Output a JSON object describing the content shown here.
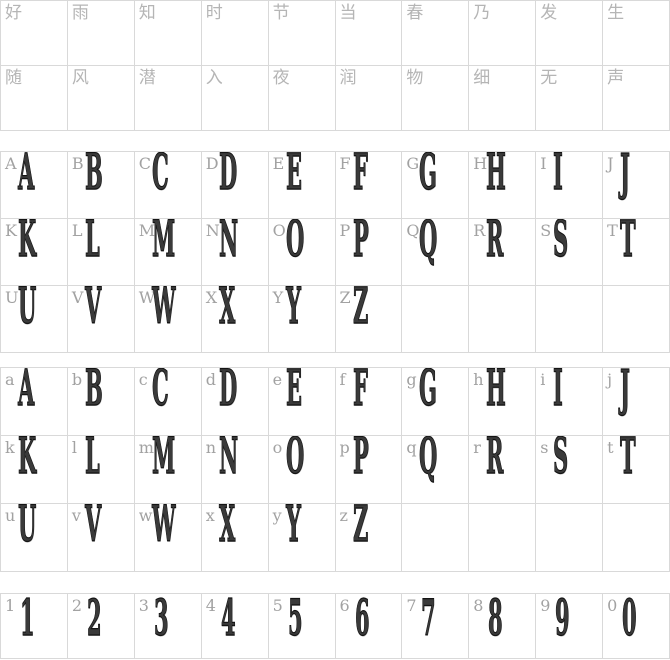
{
  "page": {
    "background": "#ffffff",
    "grid_border_color": "#d9d9d9",
    "label_color": "#a2a2a2",
    "hanzi_label_color": "#b5b5b5",
    "glyph_color": "#1c1c1c"
  },
  "tables": [
    {
      "title": "hanzi-sample-preview",
      "rows": [
        [
          {
            "label": "好",
            "glyph": ""
          },
          {
            "label": "雨",
            "glyph": ""
          },
          {
            "label": "知",
            "glyph": ""
          },
          {
            "label": "时",
            "glyph": ""
          },
          {
            "label": "节",
            "glyph": ""
          },
          {
            "label": "当",
            "glyph": ""
          },
          {
            "label": "春",
            "glyph": ""
          },
          {
            "label": "乃",
            "glyph": ""
          },
          {
            "label": "发",
            "glyph": ""
          },
          {
            "label": "生",
            "glyph": ""
          }
        ],
        [
          {
            "label": "随",
            "glyph": ""
          },
          {
            "label": "风",
            "glyph": ""
          },
          {
            "label": "潜",
            "glyph": ""
          },
          {
            "label": "入",
            "glyph": ""
          },
          {
            "label": "夜",
            "glyph": ""
          },
          {
            "label": "润",
            "glyph": ""
          },
          {
            "label": "物",
            "glyph": ""
          },
          {
            "label": "细",
            "glyph": ""
          },
          {
            "label": "无",
            "glyph": ""
          },
          {
            "label": "声",
            "glyph": ""
          }
        ]
      ]
    },
    {
      "title": "uppercase-preview",
      "rows": [
        [
          {
            "label": "A",
            "glyph": "A"
          },
          {
            "label": "B",
            "glyph": "B"
          },
          {
            "label": "C",
            "glyph": "C"
          },
          {
            "label": "D",
            "glyph": "D"
          },
          {
            "label": "E",
            "glyph": "E"
          },
          {
            "label": "F",
            "glyph": "F"
          },
          {
            "label": "G",
            "glyph": "G"
          },
          {
            "label": "H",
            "glyph": "H"
          },
          {
            "label": "I",
            "glyph": "I"
          },
          {
            "label": "J",
            "glyph": "J"
          }
        ],
        [
          {
            "label": "K",
            "glyph": "K"
          },
          {
            "label": "L",
            "glyph": "L"
          },
          {
            "label": "M",
            "glyph": "M"
          },
          {
            "label": "N",
            "glyph": "N"
          },
          {
            "label": "O",
            "glyph": "O"
          },
          {
            "label": "P",
            "glyph": "P"
          },
          {
            "label": "Q",
            "glyph": "Q"
          },
          {
            "label": "R",
            "glyph": "R"
          },
          {
            "label": "S",
            "glyph": "S"
          },
          {
            "label": "T",
            "glyph": "T"
          }
        ],
        [
          {
            "label": "U",
            "glyph": "U"
          },
          {
            "label": "V",
            "glyph": "V"
          },
          {
            "label": "W",
            "glyph": "W"
          },
          {
            "label": "X",
            "glyph": "X"
          },
          {
            "label": "Y",
            "glyph": "Y"
          },
          {
            "label": "Z",
            "glyph": "Z"
          },
          {
            "label": "",
            "glyph": ""
          },
          {
            "label": "",
            "glyph": ""
          },
          {
            "label": "",
            "glyph": ""
          },
          {
            "label": "",
            "glyph": ""
          }
        ]
      ]
    },
    {
      "title": "lowercase-preview",
      "rows": [
        [
          {
            "label": "a",
            "glyph": "A"
          },
          {
            "label": "b",
            "glyph": "B"
          },
          {
            "label": "c",
            "glyph": "C"
          },
          {
            "label": "d",
            "glyph": "D"
          },
          {
            "label": "e",
            "glyph": "E"
          },
          {
            "label": "f",
            "glyph": "F"
          },
          {
            "label": "g",
            "glyph": "G"
          },
          {
            "label": "h",
            "glyph": "H"
          },
          {
            "label": "i",
            "glyph": "I"
          },
          {
            "label": "j",
            "glyph": "J"
          }
        ],
        [
          {
            "label": "k",
            "glyph": "K"
          },
          {
            "label": "l",
            "glyph": "L"
          },
          {
            "label": "m",
            "glyph": "M"
          },
          {
            "label": "n",
            "glyph": "N"
          },
          {
            "label": "o",
            "glyph": "O"
          },
          {
            "label": "p",
            "glyph": "P"
          },
          {
            "label": "q",
            "glyph": "Q"
          },
          {
            "label": "r",
            "glyph": "R"
          },
          {
            "label": "s",
            "glyph": "S"
          },
          {
            "label": "t",
            "glyph": "T"
          }
        ],
        [
          {
            "label": "u",
            "glyph": "U"
          },
          {
            "label": "v",
            "glyph": "V"
          },
          {
            "label": "w",
            "glyph": "W"
          },
          {
            "label": "x",
            "glyph": "X"
          },
          {
            "label": "y",
            "glyph": "Y"
          },
          {
            "label": "z",
            "glyph": "Z"
          },
          {
            "label": "",
            "glyph": ""
          },
          {
            "label": "",
            "glyph": ""
          },
          {
            "label": "",
            "glyph": ""
          },
          {
            "label": "",
            "glyph": ""
          }
        ]
      ]
    },
    {
      "title": "digits-preview",
      "rows": [
        [
          {
            "label": "1",
            "glyph": "1"
          },
          {
            "label": "2",
            "glyph": "2"
          },
          {
            "label": "3",
            "glyph": "3"
          },
          {
            "label": "4",
            "glyph": "4"
          },
          {
            "label": "5",
            "glyph": "5"
          },
          {
            "label": "6",
            "glyph": "6"
          },
          {
            "label": "7",
            "glyph": "7"
          },
          {
            "label": "8",
            "glyph": "8"
          },
          {
            "label": "9",
            "glyph": "9"
          },
          {
            "label": "0",
            "glyph": "0"
          }
        ]
      ]
    }
  ]
}
